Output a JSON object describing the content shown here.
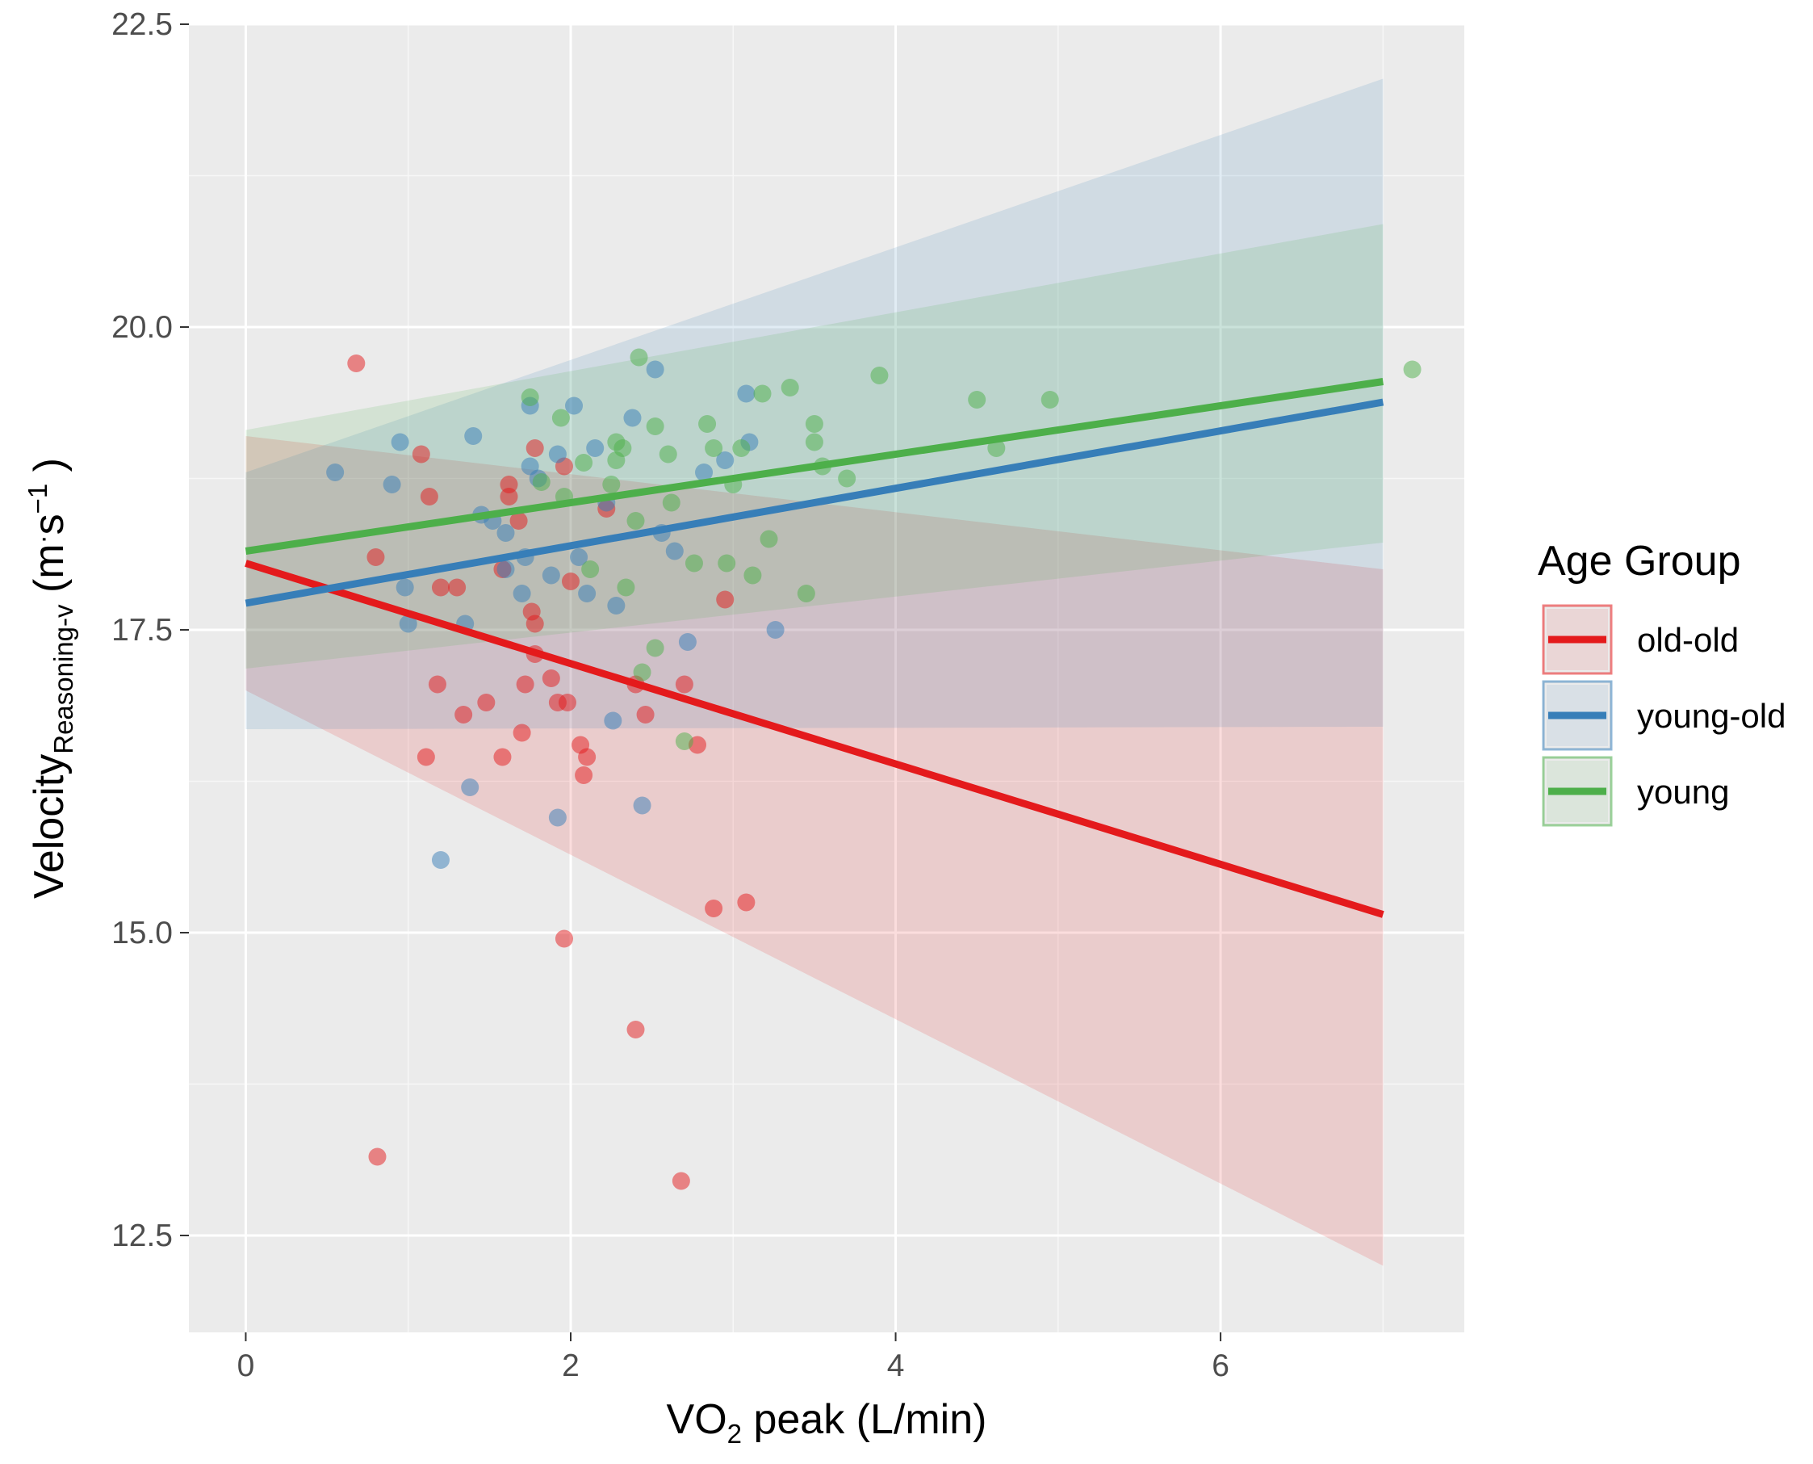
{
  "chart_data": {
    "type": "scatter",
    "title": "",
    "xlabel": {
      "prefix": "VO",
      "subscript": "2",
      "suffix": " peak (L/min)"
    },
    "ylabel": {
      "main": "Velocity",
      "subscript": "Reasoning-v",
      "unit_open": " (m",
      "unit_dot": "·",
      "unit_s": "s",
      "unit_exp": "−1",
      "unit_close": " )"
    },
    "xlim": [
      -0.35,
      7.5
    ],
    "ylim": [
      11.7,
      22.5
    ],
    "x_ticks": [
      0,
      2,
      4,
      6
    ],
    "x_tick_labels": [
      "0",
      "2",
      "4",
      "6"
    ],
    "y_ticks": [
      12.5,
      15.0,
      17.5,
      20.0,
      22.5
    ],
    "y_tick_labels": [
      "12.5",
      "15.0",
      "17.5",
      "20.0",
      "22.5"
    ],
    "grid": true,
    "legend": {
      "title": "Age Group",
      "position": "right",
      "entries": [
        "old-old",
        "young-old",
        "young"
      ]
    },
    "series": [
      {
        "name": "old-old",
        "color": "#e41a1c",
        "fit": {
          "x": [
            0,
            7
          ],
          "y": [
            18.05,
            15.15
          ]
        },
        "ci": {
          "x": [
            0,
            7
          ],
          "lower": [
            17.0,
            12.25
          ],
          "upper": [
            19.1,
            18.0
          ]
        },
        "points": [
          [
            0.68,
            19.7
          ],
          [
            0.8,
            18.1
          ],
          [
            0.81,
            13.15
          ],
          [
            1.08,
            18.95
          ],
          [
            1.13,
            18.6
          ],
          [
            1.18,
            17.05
          ],
          [
            1.2,
            17.85
          ],
          [
            1.11,
            16.45
          ],
          [
            1.3,
            17.85
          ],
          [
            1.34,
            16.8
          ],
          [
            1.48,
            16.9
          ],
          [
            1.58,
            16.45
          ],
          [
            1.62,
            18.7
          ],
          [
            1.62,
            18.6
          ],
          [
            1.58,
            18.0
          ],
          [
            1.68,
            18.4
          ],
          [
            1.7,
            16.65
          ],
          [
            1.72,
            17.05
          ],
          [
            1.76,
            17.65
          ],
          [
            1.78,
            17.55
          ],
          [
            1.78,
            17.3
          ],
          [
            1.78,
            19.0
          ],
          [
            1.88,
            17.1
          ],
          [
            1.92,
            16.9
          ],
          [
            1.96,
            18.85
          ],
          [
            1.98,
            16.9
          ],
          [
            2.0,
            17.9
          ],
          [
            2.06,
            16.55
          ],
          [
            2.08,
            16.3
          ],
          [
            2.1,
            16.45
          ],
          [
            2.22,
            18.5
          ],
          [
            2.4,
            17.05
          ],
          [
            2.46,
            16.8
          ],
          [
            2.7,
            17.05
          ],
          [
            2.78,
            16.55
          ],
          [
            2.95,
            17.75
          ],
          [
            2.88,
            15.2
          ],
          [
            3.08,
            15.25
          ],
          [
            1.96,
            14.95
          ],
          [
            2.4,
            14.2
          ],
          [
            2.68,
            12.95
          ]
        ]
      },
      {
        "name": "young-old",
        "color": "#377eb8",
        "fit": {
          "x": [
            0,
            7
          ],
          "y": [
            17.72,
            19.38
          ]
        },
        "ci": {
          "x": [
            0,
            7
          ],
          "lower": [
            16.68,
            16.7
          ],
          "upper": [
            18.8,
            22.05
          ]
        },
        "points": [
          [
            0.55,
            18.8
          ],
          [
            0.9,
            18.7
          ],
          [
            0.95,
            19.05
          ],
          [
            0.98,
            17.85
          ],
          [
            1.0,
            17.55
          ],
          [
            1.2,
            15.6
          ],
          [
            1.35,
            17.55
          ],
          [
            1.38,
            16.2
          ],
          [
            1.4,
            19.1
          ],
          [
            1.45,
            18.45
          ],
          [
            1.52,
            18.4
          ],
          [
            1.6,
            18.3
          ],
          [
            1.6,
            18.0
          ],
          [
            1.7,
            17.8
          ],
          [
            1.72,
            18.1
          ],
          [
            1.75,
            19.35
          ],
          [
            1.75,
            18.85
          ],
          [
            1.8,
            18.75
          ],
          [
            1.88,
            17.95
          ],
          [
            1.92,
            18.95
          ],
          [
            1.92,
            15.95
          ],
          [
            2.02,
            19.35
          ],
          [
            2.05,
            18.1
          ],
          [
            2.1,
            17.8
          ],
          [
            2.15,
            19.0
          ],
          [
            2.22,
            18.55
          ],
          [
            2.26,
            16.75
          ],
          [
            2.28,
            17.7
          ],
          [
            2.38,
            19.25
          ],
          [
            2.44,
            16.05
          ],
          [
            2.52,
            19.65
          ],
          [
            2.56,
            18.3
          ],
          [
            2.64,
            18.15
          ],
          [
            2.72,
            17.4
          ],
          [
            2.82,
            18.8
          ],
          [
            2.95,
            18.9
          ],
          [
            3.08,
            19.45
          ],
          [
            3.1,
            19.05
          ],
          [
            3.26,
            17.5
          ]
        ]
      },
      {
        "name": "young",
        "color": "#4daf4a",
        "fit": {
          "x": [
            0,
            7
          ],
          "y": [
            18.15,
            19.55
          ]
        },
        "ci": {
          "x": [
            0,
            7
          ],
          "lower": [
            17.18,
            18.22
          ],
          "upper": [
            19.15,
            20.85
          ]
        },
        "points": [
          [
            1.75,
            19.42
          ],
          [
            1.82,
            18.72
          ],
          [
            1.94,
            19.25
          ],
          [
            2.08,
            18.88
          ],
          [
            2.12,
            18.0
          ],
          [
            2.25,
            18.7
          ],
          [
            2.28,
            19.05
          ],
          [
            2.32,
            19.0
          ],
          [
            2.34,
            17.85
          ],
          [
            2.4,
            18.4
          ],
          [
            2.42,
            19.75
          ],
          [
            2.44,
            17.15
          ],
          [
            2.52,
            17.35
          ],
          [
            2.52,
            19.18
          ],
          [
            2.6,
            18.95
          ],
          [
            2.62,
            18.55
          ],
          [
            2.7,
            16.58
          ],
          [
            2.76,
            18.05
          ],
          [
            2.84,
            19.2
          ],
          [
            2.88,
            19.0
          ],
          [
            2.96,
            18.05
          ],
          [
            3.0,
            18.7
          ],
          [
            3.05,
            19.0
          ],
          [
            3.12,
            17.95
          ],
          [
            3.18,
            19.45
          ],
          [
            3.22,
            18.25
          ],
          [
            3.35,
            19.5
          ],
          [
            3.45,
            17.8
          ],
          [
            3.5,
            19.2
          ],
          [
            3.5,
            19.05
          ],
          [
            3.7,
            18.75
          ],
          [
            3.9,
            19.6
          ],
          [
            4.5,
            19.4
          ],
          [
            4.62,
            19.0
          ],
          [
            4.95,
            19.4
          ],
          [
            7.18,
            19.65
          ],
          [
            1.96,
            18.6
          ],
          [
            2.28,
            18.9
          ],
          [
            3.55,
            18.85
          ]
        ]
      }
    ]
  }
}
